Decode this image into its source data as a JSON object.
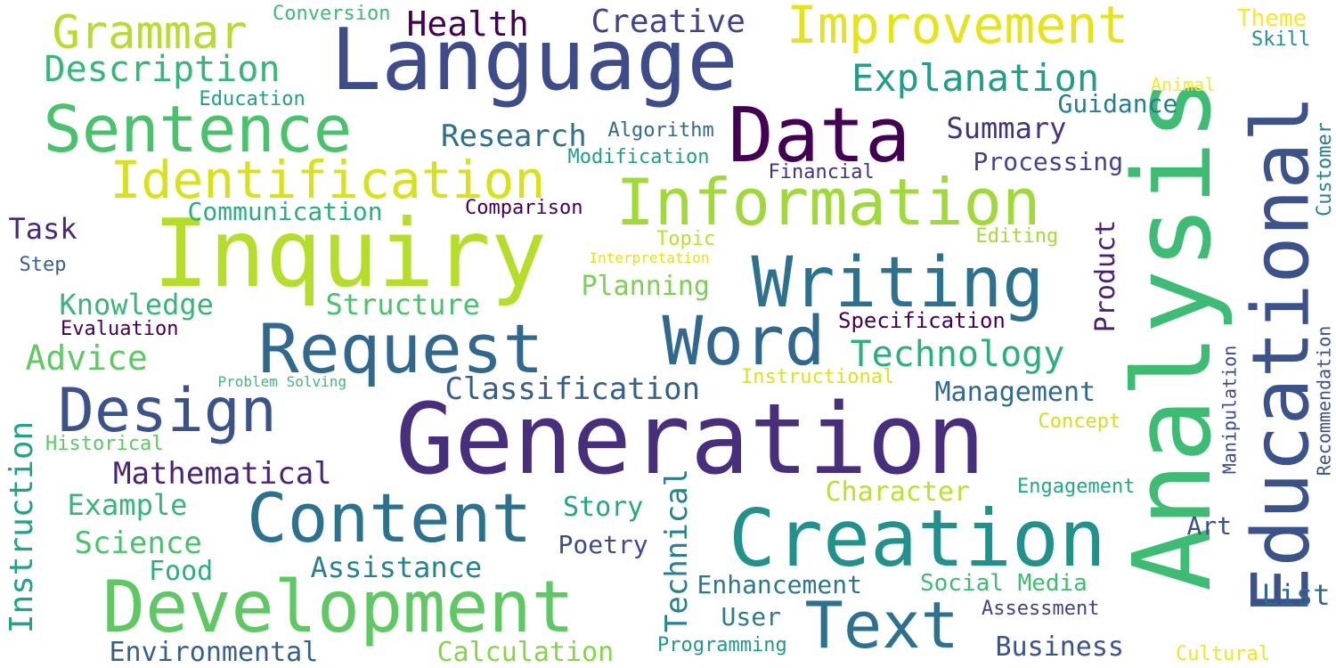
{
  "words": [
    {
      "text": "Analysis",
      "color": "#3dbc74",
      "vertical": true
    },
    {
      "text": "Generation",
      "color": "#472f7d",
      "vertical": false
    },
    {
      "text": "Inquiry",
      "color": "#b5de2b",
      "vertical": false
    },
    {
      "text": "Language",
      "color": "#3e4c8a",
      "vertical": false
    },
    {
      "text": "Creation",
      "color": "#21918c",
      "vertical": false
    },
    {
      "text": "Development",
      "color": "#5ec962",
      "vertical": false
    },
    {
      "text": "Data",
      "color": "#440154",
      "vertical": false
    },
    {
      "text": "Information",
      "color": "#a0da39",
      "vertical": false
    },
    {
      "text": "Writing",
      "color": "#2c728e",
      "vertical": false
    },
    {
      "text": "Educational",
      "color": "#3b528b",
      "vertical": true
    },
    {
      "text": "Request",
      "color": "#31688e",
      "vertical": false
    },
    {
      "text": "Content",
      "color": "#2c728e",
      "vertical": false
    },
    {
      "text": "Word",
      "color": "#31688e",
      "vertical": false
    },
    {
      "text": "Sentence",
      "color": "#4ac16d",
      "vertical": false
    },
    {
      "text": "Design",
      "color": "#3b528b",
      "vertical": false
    },
    {
      "text": "Text",
      "color": "#2c728e",
      "vertical": false
    },
    {
      "text": "Improvement",
      "color": "#e5e419",
      "vertical": false
    },
    {
      "text": "Identification",
      "color": "#d8e219",
      "vertical": false
    },
    {
      "text": "Grammar",
      "color": "#b5de2b",
      "vertical": false
    },
    {
      "text": "Explanation",
      "color": "#1f9e89",
      "vertical": false
    },
    {
      "text": "Description",
      "color": "#35b779",
      "vertical": false
    },
    {
      "text": "Technology",
      "color": "#2ab07f",
      "vertical": false
    },
    {
      "text": "Instruction",
      "color": "#20a486",
      "vertical": true
    },
    {
      "text": "Technical",
      "color": "#26828e",
      "vertical": true
    },
    {
      "text": "Health",
      "color": "#440154",
      "vertical": false
    },
    {
      "text": "Creative",
      "color": "#414487",
      "vertical": false
    },
    {
      "text": "Research",
      "color": "#2c728e",
      "vertical": false
    },
    {
      "text": "Classification",
      "color": "#355f8d",
      "vertical": false
    },
    {
      "text": "Mathematical",
      "color": "#482576",
      "vertical": false
    },
    {
      "text": "Product",
      "color": "#482173",
      "vertical": true
    },
    {
      "text": "Summary",
      "color": "#46327e",
      "vertical": false
    },
    {
      "text": "Processing",
      "color": "#414487",
      "vertical": false
    },
    {
      "text": "Communication",
      "color": "#29af7f",
      "vertical": false
    },
    {
      "text": "Knowledge",
      "color": "#35b779",
      "vertical": false
    },
    {
      "text": "Structure",
      "color": "#4ac16d",
      "vertical": false
    },
    {
      "text": "Advice",
      "color": "#5ec962",
      "vertical": false
    },
    {
      "text": "Management",
      "color": "#306a8e",
      "vertical": false
    },
    {
      "text": "Character",
      "color": "#c2df23",
      "vertical": false
    },
    {
      "text": "Assistance",
      "color": "#26828e",
      "vertical": false
    },
    {
      "text": "Planning",
      "color": "#7ad151",
      "vertical": false
    },
    {
      "text": "Guidance",
      "color": "#287d8e",
      "vertical": false
    },
    {
      "text": "Science",
      "color": "#4ac16d",
      "vertical": false
    },
    {
      "text": "Example",
      "color": "#35b779",
      "vertical": false
    },
    {
      "text": "Story",
      "color": "#22a884",
      "vertical": false
    },
    {
      "text": "Enhancement",
      "color": "#2a788e",
      "vertical": false
    },
    {
      "text": "Environmental",
      "color": "#355f8d",
      "vertical": false
    },
    {
      "text": "Calculation",
      "color": "#86d549",
      "vertical": false
    },
    {
      "text": "Business",
      "color": "#3b528b",
      "vertical": false
    },
    {
      "text": "List",
      "color": "#31688e",
      "vertical": false
    },
    {
      "text": "Task",
      "color": "#482878",
      "vertical": false
    },
    {
      "text": "Food",
      "color": "#2ab07f",
      "vertical": false
    },
    {
      "text": "Poetry",
      "color": "#3e4a89",
      "vertical": false
    },
    {
      "text": "Art",
      "color": "#3b528b",
      "vertical": false
    },
    {
      "text": "User",
      "color": "#287d8e",
      "vertical": false
    },
    {
      "text": "Social Media",
      "color": "#3dbc74",
      "vertical": false
    },
    {
      "text": "Specification",
      "color": "#440154",
      "vertical": false
    },
    {
      "text": "Customer",
      "color": "#26828e",
      "vertical": true
    },
    {
      "text": "Recommendation",
      "color": "#3b528b",
      "vertical": true
    },
    {
      "text": "Manipulation",
      "color": "#3e4a89",
      "vertical": true
    },
    {
      "text": "Conversion",
      "color": "#3dbc74",
      "vertical": false
    },
    {
      "text": "Education",
      "color": "#1fa188",
      "vertical": false
    },
    {
      "text": "Algorithm",
      "color": "#31688e",
      "vertical": false
    },
    {
      "text": "Modification",
      "color": "#1f9e89",
      "vertical": false
    },
    {
      "text": "Financial",
      "color": "#46337f",
      "vertical": false
    },
    {
      "text": "Comparison",
      "color": "#440154",
      "vertical": false
    },
    {
      "text": "Topic",
      "color": "#bddf26",
      "vertical": false
    },
    {
      "text": "Editing",
      "color": "#a5db36",
      "vertical": false
    },
    {
      "text": "Interpretation",
      "color": "#e2e418",
      "vertical": false
    },
    {
      "text": "Step",
      "color": "#355f8d",
      "vertical": false
    },
    {
      "text": "Evaluation",
      "color": "#440154",
      "vertical": false
    },
    {
      "text": "Problem Solving",
      "color": "#3dbc74",
      "vertical": false
    },
    {
      "text": "Historical",
      "color": "#5ec962",
      "vertical": false
    },
    {
      "text": "Instructional",
      "color": "#dde318",
      "vertical": false
    },
    {
      "text": "Concept",
      "color": "#d0e11c",
      "vertical": false
    },
    {
      "text": "Engagement",
      "color": "#22a884",
      "vertical": false
    },
    {
      "text": "Programming",
      "color": "#1f9a8a",
      "vertical": false
    },
    {
      "text": "Assessment",
      "color": "#414487",
      "vertical": false
    },
    {
      "text": "Cultural",
      "color": "#f1e51d",
      "vertical": false
    },
    {
      "text": "Theme",
      "color": "#fde725",
      "vertical": false
    },
    {
      "text": "Skill",
      "color": "#21918c",
      "vertical": false
    },
    {
      "text": "Animal",
      "color": "#fde725",
      "vertical": false
    }
  ]
}
